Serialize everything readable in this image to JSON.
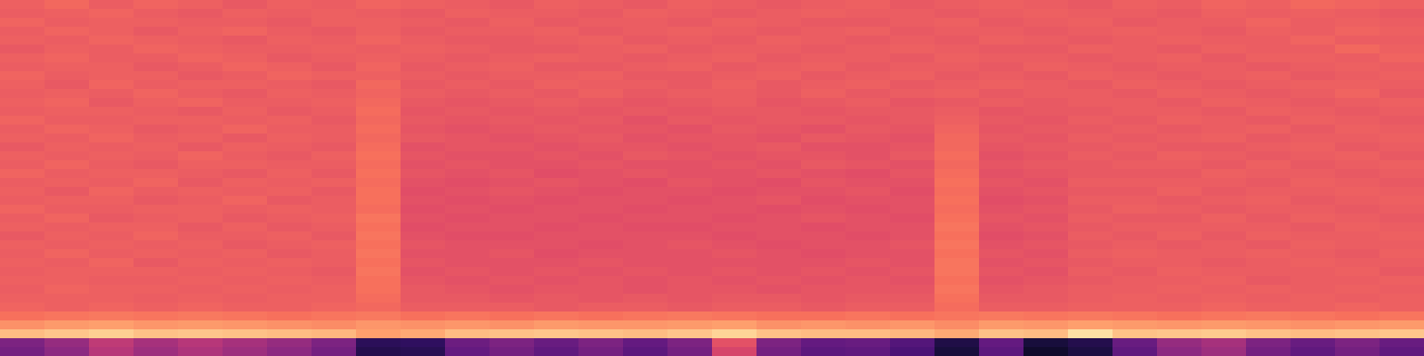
{
  "chart_data": {
    "type": "heatmap",
    "tick_labels": false,
    "zlim": [
      0,
      1
    ],
    "cells": [
      [
        0.66,
        0.68,
        0.65,
        0.67,
        0.66,
        0.64,
        0.66,
        0.65,
        0.67,
        0.66,
        0.65,
        0.64,
        0.66,
        0.65,
        0.64,
        0.66,
        0.65,
        0.64,
        0.65,
        0.66,
        0.64,
        0.65,
        0.66,
        0.65,
        0.64,
        0.66,
        0.65,
        0.67,
        0.66,
        0.68,
        0.67,
        0.66
      ],
      [
        0.65,
        0.66,
        0.67,
        0.65,
        0.64,
        0.66,
        0.65,
        0.66,
        0.65,
        0.64,
        0.66,
        0.65,
        0.65,
        0.64,
        0.66,
        0.65,
        0.64,
        0.65,
        0.66,
        0.65,
        0.65,
        0.64,
        0.65,
        0.66,
        0.65,
        0.65,
        0.64,
        0.66,
        0.65,
        0.66,
        0.65,
        0.64
      ],
      [
        0.67,
        0.65,
        0.66,
        0.66,
        0.65,
        0.65,
        0.64,
        0.66,
        0.66,
        0.65,
        0.64,
        0.66,
        0.64,
        0.65,
        0.65,
        0.64,
        0.66,
        0.65,
        0.64,
        0.64,
        0.65,
        0.66,
        0.64,
        0.65,
        0.66,
        0.64,
        0.65,
        0.65,
        0.67,
        0.65,
        0.66,
        0.65
      ],
      [
        0.65,
        0.67,
        0.66,
        0.64,
        0.66,
        0.67,
        0.65,
        0.64,
        0.66,
        0.64,
        0.65,
        0.65,
        0.66,
        0.64,
        0.65,
        0.66,
        0.65,
        0.64,
        0.65,
        0.66,
        0.64,
        0.65,
        0.65,
        0.64,
        0.65,
        0.66,
        0.65,
        0.64,
        0.66,
        0.65,
        0.67,
        0.66
      ],
      [
        0.66,
        0.65,
        0.67,
        0.66,
        0.65,
        0.64,
        0.66,
        0.65,
        0.67,
        0.65,
        0.64,
        0.64,
        0.65,
        0.66,
        0.64,
        0.65,
        0.64,
        0.66,
        0.65,
        0.64,
        0.65,
        0.64,
        0.66,
        0.65,
        0.64,
        0.65,
        0.66,
        0.65,
        0.65,
        0.67,
        0.65,
        0.65
      ],
      [
        0.64,
        0.66,
        0.65,
        0.67,
        0.66,
        0.65,
        0.65,
        0.66,
        0.65,
        0.66,
        0.65,
        0.64,
        0.64,
        0.65,
        0.66,
        0.64,
        0.65,
        0.65,
        0.64,
        0.65,
        0.66,
        0.65,
        0.64,
        0.64,
        0.66,
        0.65,
        0.64,
        0.66,
        0.65,
        0.65,
        0.68,
        0.66
      ],
      [
        0.66,
        0.67,
        0.65,
        0.65,
        0.67,
        0.66,
        0.64,
        0.65,
        0.66,
        0.65,
        0.64,
        0.65,
        0.66,
        0.65,
        0.64,
        0.65,
        0.66,
        0.64,
        0.65,
        0.65,
        0.64,
        0.66,
        0.65,
        0.65,
        0.64,
        0.65,
        0.66,
        0.64,
        0.66,
        0.66,
        0.65,
        0.67
      ],
      [
        0.65,
        0.66,
        0.66,
        0.64,
        0.65,
        0.67,
        0.66,
        0.64,
        0.67,
        0.64,
        0.65,
        0.66,
        0.64,
        0.64,
        0.65,
        0.66,
        0.64,
        0.65,
        0.66,
        0.64,
        0.65,
        0.65,
        0.64,
        0.66,
        0.65,
        0.64,
        0.65,
        0.65,
        0.64,
        0.65,
        0.66,
        0.65
      ],
      [
        0.67,
        0.65,
        0.66,
        0.66,
        0.64,
        0.65,
        0.67,
        0.66,
        0.66,
        0.65,
        0.64,
        0.65,
        0.65,
        0.66,
        0.64,
        0.64,
        0.65,
        0.66,
        0.64,
        0.65,
        0.66,
        0.64,
        0.65,
        0.64,
        0.66,
        0.65,
        0.64,
        0.65,
        0.66,
        0.64,
        0.65,
        0.66
      ],
      [
        0.66,
        0.64,
        0.67,
        0.65,
        0.66,
        0.66,
        0.65,
        0.64,
        0.68,
        0.64,
        0.65,
        0.64,
        0.66,
        0.65,
        0.65,
        0.64,
        0.66,
        0.64,
        0.65,
        0.66,
        0.64,
        0.65,
        0.66,
        0.65,
        0.64,
        0.66,
        0.65,
        0.64,
        0.65,
        0.66,
        0.66,
        0.65
      ],
      [
        0.65,
        0.66,
        0.65,
        0.67,
        0.65,
        0.64,
        0.66,
        0.65,
        0.67,
        0.65,
        0.64,
        0.65,
        0.64,
        0.66,
        0.64,
        0.65,
        0.65,
        0.64,
        0.66,
        0.64,
        0.65,
        0.66,
        0.64,
        0.65,
        0.65,
        0.64,
        0.66,
        0.65,
        0.64,
        0.65,
        0.67,
        0.64
      ],
      [
        0.66,
        0.67,
        0.64,
        0.66,
        0.67,
        0.65,
        0.65,
        0.66,
        0.68,
        0.64,
        0.63,
        0.64,
        0.65,
        0.64,
        0.63,
        0.64,
        0.65,
        0.63,
        0.64,
        0.65,
        0.63,
        0.64,
        0.65,
        0.64,
        0.65,
        0.65,
        0.64,
        0.66,
        0.65,
        0.64,
        0.65,
        0.66
      ],
      [
        0.65,
        0.66,
        0.66,
        0.65,
        0.64,
        0.66,
        0.64,
        0.65,
        0.69,
        0.63,
        0.64,
        0.63,
        0.64,
        0.63,
        0.64,
        0.63,
        0.64,
        0.64,
        0.63,
        0.64,
        0.64,
        0.65,
        0.63,
        0.64,
        0.64,
        0.65,
        0.65,
        0.64,
        0.66,
        0.65,
        0.64,
        0.65
      ],
      [
        0.67,
        0.65,
        0.65,
        0.66,
        0.66,
        0.65,
        0.66,
        0.64,
        0.68,
        0.64,
        0.63,
        0.64,
        0.63,
        0.64,
        0.62,
        0.64,
        0.63,
        0.64,
        0.64,
        0.63,
        0.64,
        0.66,
        0.64,
        0.63,
        0.65,
        0.64,
        0.66,
        0.65,
        0.64,
        0.66,
        0.65,
        0.64
      ],
      [
        0.65,
        0.67,
        0.66,
        0.64,
        0.65,
        0.67,
        0.65,
        0.65,
        0.69,
        0.63,
        0.62,
        0.63,
        0.64,
        0.63,
        0.63,
        0.62,
        0.64,
        0.63,
        0.62,
        0.64,
        0.63,
        0.67,
        0.63,
        0.64,
        0.64,
        0.65,
        0.64,
        0.65,
        0.66,
        0.64,
        0.66,
        0.65
      ],
      [
        0.66,
        0.65,
        0.67,
        0.65,
        0.66,
        0.64,
        0.66,
        0.65,
        0.68,
        0.64,
        0.63,
        0.62,
        0.63,
        0.64,
        0.62,
        0.63,
        0.63,
        0.62,
        0.64,
        0.63,
        0.62,
        0.68,
        0.64,
        0.63,
        0.65,
        0.64,
        0.65,
        0.66,
        0.64,
        0.65,
        0.65,
        0.66
      ],
      [
        0.64,
        0.66,
        0.65,
        0.66,
        0.64,
        0.66,
        0.65,
        0.64,
        0.69,
        0.62,
        0.63,
        0.63,
        0.62,
        0.63,
        0.63,
        0.62,
        0.63,
        0.64,
        0.62,
        0.62,
        0.63,
        0.68,
        0.63,
        0.64,
        0.64,
        0.65,
        0.64,
        0.64,
        0.65,
        0.66,
        0.64,
        0.65
      ],
      [
        0.66,
        0.65,
        0.66,
        0.65,
        0.67,
        0.65,
        0.64,
        0.66,
        0.7,
        0.63,
        0.62,
        0.62,
        0.63,
        0.62,
        0.64,
        0.63,
        0.62,
        0.63,
        0.63,
        0.62,
        0.64,
        0.69,
        0.62,
        0.63,
        0.65,
        0.64,
        0.66,
        0.65,
        0.64,
        0.65,
        0.66,
        0.64
      ],
      [
        0.65,
        0.67,
        0.65,
        0.64,
        0.66,
        0.66,
        0.65,
        0.65,
        0.69,
        0.62,
        0.63,
        0.62,
        0.62,
        0.63,
        0.62,
        0.62,
        0.63,
        0.62,
        0.64,
        0.63,
        0.62,
        0.68,
        0.63,
        0.64,
        0.64,
        0.65,
        0.65,
        0.64,
        0.66,
        0.64,
        0.65,
        0.66
      ],
      [
        0.67,
        0.65,
        0.66,
        0.66,
        0.65,
        0.64,
        0.66,
        0.64,
        0.7,
        0.63,
        0.62,
        0.63,
        0.61,
        0.62,
        0.63,
        0.62,
        0.62,
        0.63,
        0.62,
        0.61,
        0.63,
        0.69,
        0.62,
        0.63,
        0.64,
        0.64,
        0.64,
        0.66,
        0.65,
        0.65,
        0.64,
        0.65
      ],
      [
        0.65,
        0.66,
        0.65,
        0.67,
        0.64,
        0.66,
        0.65,
        0.66,
        0.69,
        0.62,
        0.61,
        0.62,
        0.63,
        0.62,
        0.61,
        0.63,
        0.62,
        0.61,
        0.63,
        0.62,
        0.62,
        0.7,
        0.63,
        0.62,
        0.65,
        0.65,
        0.65,
        0.65,
        0.64,
        0.66,
        0.65,
        0.64
      ],
      [
        0.66,
        0.64,
        0.67,
        0.65,
        0.66,
        0.65,
        0.66,
        0.64,
        0.7,
        0.61,
        0.62,
        0.63,
        0.62,
        0.61,
        0.62,
        0.62,
        0.61,
        0.62,
        0.62,
        0.63,
        0.61,
        0.69,
        0.62,
        0.63,
        0.64,
        0.64,
        0.66,
        0.64,
        0.65,
        0.65,
        0.66,
        0.65
      ],
      [
        0.65,
        0.66,
        0.66,
        0.64,
        0.65,
        0.67,
        0.64,
        0.65,
        0.7,
        0.62,
        0.61,
        0.62,
        0.61,
        0.62,
        0.62,
        0.61,
        0.62,
        0.63,
        0.61,
        0.62,
        0.62,
        0.7,
        0.61,
        0.62,
        0.65,
        0.65,
        0.64,
        0.65,
        0.66,
        0.64,
        0.65,
        0.66
      ],
      [
        0.67,
        0.65,
        0.65,
        0.66,
        0.66,
        0.65,
        0.66,
        0.65,
        0.69,
        0.61,
        0.62,
        0.61,
        0.62,
        0.62,
        0.61,
        0.62,
        0.62,
        0.61,
        0.62,
        0.61,
        0.62,
        0.69,
        0.62,
        0.63,
        0.64,
        0.66,
        0.65,
        0.64,
        0.65,
        0.65,
        0.64,
        0.65
      ],
      [
        0.65,
        0.67,
        0.64,
        0.65,
        0.66,
        0.64,
        0.65,
        0.66,
        0.71,
        0.62,
        0.61,
        0.62,
        0.62,
        0.61,
        0.62,
        0.62,
        0.61,
        0.62,
        0.63,
        0.62,
        0.61,
        0.7,
        0.63,
        0.62,
        0.65,
        0.64,
        0.64,
        0.66,
        0.64,
        0.66,
        0.65,
        0.64
      ],
      [
        0.66,
        0.65,
        0.66,
        0.66,
        0.64,
        0.66,
        0.64,
        0.65,
        0.7,
        0.61,
        0.62,
        0.62,
        0.61,
        0.62,
        0.61,
        0.61,
        0.62,
        0.62,
        0.61,
        0.62,
        0.62,
        0.71,
        0.62,
        0.63,
        0.64,
        0.65,
        0.65,
        0.65,
        0.65,
        0.64,
        0.66,
        0.65
      ],
      [
        0.64,
        0.66,
        0.65,
        0.67,
        0.65,
        0.65,
        0.66,
        0.64,
        0.71,
        0.62,
        0.61,
        0.61,
        0.62,
        0.62,
        0.62,
        0.62,
        0.61,
        0.62,
        0.62,
        0.61,
        0.62,
        0.7,
        0.61,
        0.62,
        0.65,
        0.64,
        0.66,
        0.64,
        0.66,
        0.65,
        0.65,
        0.66
      ],
      [
        0.66,
        0.65,
        0.66,
        0.65,
        0.66,
        0.64,
        0.65,
        0.66,
        0.7,
        0.63,
        0.62,
        0.62,
        0.62,
        0.61,
        0.62,
        0.63,
        0.62,
        0.61,
        0.62,
        0.62,
        0.63,
        0.71,
        0.62,
        0.63,
        0.64,
        0.65,
        0.64,
        0.65,
        0.64,
        0.66,
        0.65,
        0.65
      ],
      [
        0.65,
        0.67,
        0.65,
        0.66,
        0.65,
        0.66,
        0.64,
        0.65,
        0.71,
        0.62,
        0.62,
        0.63,
        0.61,
        0.62,
        0.62,
        0.62,
        0.63,
        0.62,
        0.61,
        0.62,
        0.62,
        0.7,
        0.63,
        0.62,
        0.65,
        0.66,
        0.65,
        0.65,
        0.66,
        0.65,
        0.64,
        0.66
      ],
      [
        0.66,
        0.65,
        0.67,
        0.64,
        0.66,
        0.65,
        0.66,
        0.65,
        0.7,
        0.63,
        0.62,
        0.62,
        0.62,
        0.63,
        0.62,
        0.62,
        0.62,
        0.62,
        0.62,
        0.63,
        0.62,
        0.71,
        0.62,
        0.63,
        0.64,
        0.65,
        0.65,
        0.64,
        0.65,
        0.66,
        0.65,
        0.65
      ],
      [
        0.65,
        0.66,
        0.66,
        0.66,
        0.65,
        0.66,
        0.65,
        0.64,
        0.71,
        0.62,
        0.63,
        0.62,
        0.63,
        0.62,
        0.63,
        0.62,
        0.63,
        0.62,
        0.63,
        0.62,
        0.63,
        0.71,
        0.63,
        0.62,
        0.65,
        0.64,
        0.66,
        0.65,
        0.65,
        0.65,
        0.66,
        0.64
      ],
      [
        0.66,
        0.66,
        0.65,
        0.65,
        0.66,
        0.65,
        0.66,
        0.65,
        0.7,
        0.63,
        0.62,
        0.63,
        0.62,
        0.63,
        0.62,
        0.63,
        0.62,
        0.63,
        0.62,
        0.63,
        0.62,
        0.7,
        0.62,
        0.63,
        0.64,
        0.65,
        0.65,
        0.66,
        0.64,
        0.65,
        0.65,
        0.66
      ],
      [
        0.65,
        0.67,
        0.66,
        0.66,
        0.65,
        0.66,
        0.65,
        0.66,
        0.7,
        0.64,
        0.63,
        0.62,
        0.63,
        0.63,
        0.62,
        0.63,
        0.63,
        0.62,
        0.63,
        0.63,
        0.63,
        0.71,
        0.63,
        0.64,
        0.65,
        0.65,
        0.66,
        0.65,
        0.66,
        0.65,
        0.66,
        0.65
      ],
      [
        0.66,
        0.66,
        0.66,
        0.65,
        0.66,
        0.65,
        0.66,
        0.66,
        0.69,
        0.64,
        0.64,
        0.63,
        0.64,
        0.63,
        0.64,
        0.63,
        0.64,
        0.64,
        0.63,
        0.64,
        0.64,
        0.7,
        0.64,
        0.64,
        0.65,
        0.66,
        0.65,
        0.66,
        0.65,
        0.66,
        0.65,
        0.66
      ],
      [
        0.67,
        0.66,
        0.67,
        0.66,
        0.67,
        0.66,
        0.66,
        0.67,
        0.68,
        0.65,
        0.65,
        0.65,
        0.64,
        0.65,
        0.65,
        0.64,
        0.65,
        0.65,
        0.64,
        0.65,
        0.65,
        0.69,
        0.65,
        0.65,
        0.66,
        0.66,
        0.66,
        0.67,
        0.66,
        0.66,
        0.67,
        0.66
      ],
      [
        0.7,
        0.71,
        0.72,
        0.71,
        0.72,
        0.71,
        0.7,
        0.71,
        0.72,
        0.7,
        0.71,
        0.7,
        0.71,
        0.7,
        0.71,
        0.72,
        0.71,
        0.7,
        0.7,
        0.71,
        0.7,
        0.71,
        0.72,
        0.71,
        0.72,
        0.71,
        0.7,
        0.71,
        0.72,
        0.71,
        0.7,
        0.71
      ],
      [
        0.77,
        0.79,
        0.8,
        0.78,
        0.79,
        0.78,
        0.77,
        0.76,
        0.78,
        0.77,
        0.78,
        0.77,
        0.79,
        0.78,
        0.78,
        0.79,
        0.8,
        0.77,
        0.78,
        0.77,
        0.78,
        0.76,
        0.79,
        0.78,
        0.8,
        0.79,
        0.78,
        0.79,
        0.78,
        0.77,
        0.78,
        0.79
      ],
      [
        0.86,
        0.88,
        0.9,
        0.87,
        0.88,
        0.87,
        0.86,
        0.85,
        0.8,
        0.82,
        0.86,
        0.87,
        0.88,
        0.87,
        0.86,
        0.88,
        0.91,
        0.87,
        0.86,
        0.86,
        0.85,
        0.82,
        0.87,
        0.86,
        0.94,
        0.87,
        0.88,
        0.89,
        0.87,
        0.86,
        0.87,
        0.88
      ],
      [
        0.36,
        0.42,
        0.52,
        0.46,
        0.5,
        0.46,
        0.42,
        0.36,
        0.16,
        0.17,
        0.32,
        0.36,
        0.31,
        0.36,
        0.3,
        0.36,
        0.62,
        0.36,
        0.3,
        0.31,
        0.26,
        0.13,
        0.3,
        0.11,
        0.14,
        0.31,
        0.42,
        0.46,
        0.36,
        0.31,
        0.36,
        0.31
      ],
      [
        0.34,
        0.4,
        0.5,
        0.44,
        0.48,
        0.44,
        0.4,
        0.34,
        0.14,
        0.15,
        0.3,
        0.34,
        0.29,
        0.34,
        0.28,
        0.34,
        0.58,
        0.34,
        0.28,
        0.29,
        0.24,
        0.11,
        0.28,
        0.08,
        0.12,
        0.29,
        0.4,
        0.44,
        0.34,
        0.29,
        0.34,
        0.29
      ]
    ]
  }
}
